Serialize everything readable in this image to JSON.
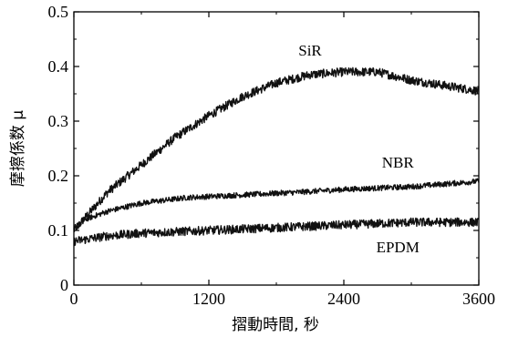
{
  "chart_data": {
    "type": "line",
    "xlabel": "摺動時間, 秒",
    "ylabel": "摩擦係数 μ",
    "xlim": [
      0,
      3600
    ],
    "ylim": [
      0,
      0.5
    ],
    "xticks": [
      0,
      1200,
      2400,
      3600
    ],
    "yticks": [
      0,
      0.1,
      0.2,
      0.3,
      0.4,
      0.5
    ],
    "xtick_labels": [
      "0",
      "1200",
      "2400",
      "3600"
    ],
    "ytick_labels": [
      "0",
      "0.1",
      "0.2",
      "0.3",
      "0.4",
      "0.5"
    ],
    "grid": false,
    "series": [
      {
        "name": "SiR",
        "noise": 0.008,
        "points": [
          [
            0,
            0.1
          ],
          [
            300,
            0.17
          ],
          [
            600,
            0.22
          ],
          [
            900,
            0.27
          ],
          [
            1200,
            0.31
          ],
          [
            1500,
            0.345
          ],
          [
            1800,
            0.37
          ],
          [
            2100,
            0.385
          ],
          [
            2400,
            0.39
          ],
          [
            2700,
            0.39
          ],
          [
            3000,
            0.375
          ],
          [
            3300,
            0.365
          ],
          [
            3600,
            0.355
          ]
        ]
      },
      {
        "name": "NBR",
        "noise": 0.005,
        "points": [
          [
            0,
            0.1
          ],
          [
            100,
            0.12
          ],
          [
            300,
            0.135
          ],
          [
            600,
            0.15
          ],
          [
            1000,
            0.16
          ],
          [
            1500,
            0.165
          ],
          [
            2000,
            0.17
          ],
          [
            2400,
            0.175
          ],
          [
            3000,
            0.18
          ],
          [
            3600,
            0.19
          ]
        ]
      },
      {
        "name": "EPDM",
        "noise": 0.008,
        "points": [
          [
            0,
            0.08
          ],
          [
            300,
            0.09
          ],
          [
            600,
            0.095
          ],
          [
            1200,
            0.1
          ],
          [
            1800,
            0.105
          ],
          [
            2400,
            0.11
          ],
          [
            3000,
            0.115
          ],
          [
            3600,
            0.115
          ]
        ]
      }
    ]
  }
}
